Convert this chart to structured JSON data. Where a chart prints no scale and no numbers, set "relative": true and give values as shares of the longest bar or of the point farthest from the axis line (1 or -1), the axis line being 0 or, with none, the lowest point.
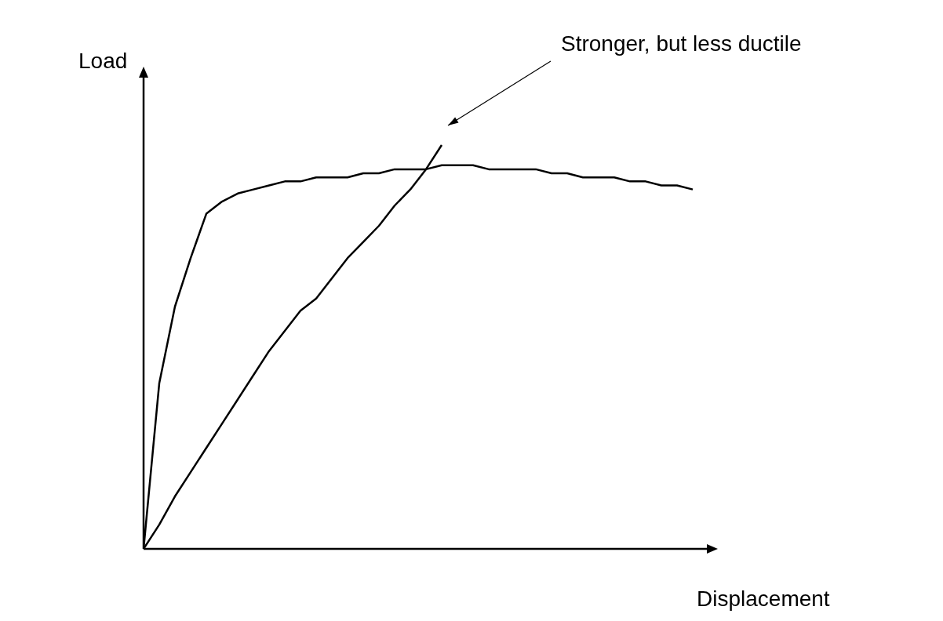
{
  "chart_data": {
    "type": "line",
    "relative": true,
    "xlabel": "Displacement",
    "ylabel": "Load",
    "legend": false,
    "grid": false,
    "marker": "none",
    "line_style": "solid",
    "categories": [
      null,
      null,
      null,
      null,
      null,
      null,
      null,
      null,
      null,
      null,
      null,
      null,
      null,
      null,
      null,
      null,
      null,
      null,
      null,
      null,
      null,
      null,
      null,
      null,
      null,
      null,
      null,
      null,
      null,
      null,
      null,
      null,
      null,
      null,
      null,
      null
    ],
    "series": [
      {
        "color": "#000000",
        "values": [
          0,
          0.41,
          0.6,
          0.72,
          0.83,
          0.86,
          0.88,
          0.89,
          0.9,
          0.91,
          0.91,
          0.92,
          0.92,
          0.92,
          0.93,
          0.93,
          0.94,
          0.94,
          0.94,
          0.95,
          0.95,
          0.95,
          0.94,
          0.94,
          0.94,
          0.94,
          0.93,
          0.93,
          0.92,
          0.92,
          0.92,
          0.91,
          0.91,
          0.9,
          0.9,
          0.89
        ]
      },
      {
        "color": "#000000",
        "values": [
          0,
          0.06,
          0.13,
          0.19,
          0.25,
          0.31,
          0.37,
          0.43,
          0.49,
          0.54,
          0.59,
          0.62,
          0.67,
          0.72,
          0.76,
          0.8,
          0.85,
          0.89,
          0.94,
          1,
          null,
          null,
          null,
          null,
          null,
          null,
          null,
          null,
          null,
          null,
          null,
          null,
          null,
          null,
          null,
          null
        ]
      }
    ],
    "annotations": [
      "Stronger, but less ductile"
    ]
  }
}
